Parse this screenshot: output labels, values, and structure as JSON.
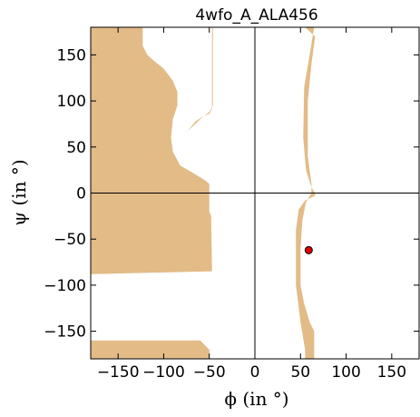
{
  "chart_data": {
    "type": "scatter",
    "title": "4wfo_A_ALA456",
    "xlabel": "ϕ (in °)",
    "ylabel": "ψ (in °)",
    "xlim": [
      -180,
      180
    ],
    "ylim": [
      -180,
      180
    ],
    "xticks": [
      -150,
      -100,
      -50,
      0,
      50,
      100,
      150
    ],
    "yticks": [
      -150,
      -100,
      -50,
      0,
      50,
      100,
      150
    ],
    "region_color": "#E2BB87",
    "point_color": "#DD0000",
    "points": [
      {
        "x": 59,
        "y": -62
      }
    ],
    "allowed_regions": [
      [
        [
          -180,
          180
        ],
        [
          -123,
          180
        ],
        [
          -123,
          160
        ],
        [
          -118,
          150
        ],
        [
          -110,
          143
        ],
        [
          -100,
          135
        ],
        [
          -90,
          122
        ],
        [
          -85,
          110
        ],
        [
          -85,
          95
        ],
        [
          -90,
          80
        ],
        [
          -92,
          60
        ],
        [
          -90,
          45
        ],
        [
          -82,
          30
        ],
        [
          -68,
          22
        ],
        [
          -55,
          14
        ],
        [
          -50,
          10
        ],
        [
          -50,
          -20
        ],
        [
          -48,
          -25
        ],
        [
          -47,
          -85
        ],
        [
          -180,
          -88
        ]
      ],
      [
        [
          -74,
          67
        ],
        [
          -65,
          78
        ],
        [
          -55,
          84
        ],
        [
          -50,
          86
        ],
        [
          -47,
          92
        ],
        [
          -47,
          180
        ],
        [
          -50,
          180
        ],
        [
          -45,
          180
        ],
        [
          -40,
          180
        ],
        [
          -46,
          180
        ],
        [
          -46,
          95
        ],
        [
          -50,
          88
        ],
        [
          -60,
          80
        ]
      ],
      [
        [
          -180,
          -160
        ],
        [
          -60,
          -160
        ],
        [
          -50,
          -170
        ],
        [
          -50,
          -180
        ],
        [
          -180,
          -180
        ]
      ],
      [
        [
          55,
          180
        ],
        [
          65,
          180
        ],
        [
          60,
          150
        ],
        [
          54,
          115
        ],
        [
          53,
          60
        ],
        [
          56,
          25
        ],
        [
          62,
          6
        ],
        [
          66,
          0
        ],
        [
          66,
          -3
        ],
        [
          55,
          -8
        ],
        [
          48,
          -18
        ],
        [
          45,
          -40
        ],
        [
          45,
          -100
        ],
        [
          50,
          -140
        ],
        [
          55,
          -170
        ],
        [
          55,
          -180
        ],
        [
          65,
          -180
        ],
        [
          65,
          -150
        ],
        [
          60,
          -140
        ],
        [
          54,
          -120
        ],
        [
          50,
          -100
        ],
        [
          50,
          -60
        ],
        [
          52,
          -30
        ],
        [
          56,
          -10
        ],
        [
          62,
          0
        ],
        [
          62,
          10
        ],
        [
          58,
          40
        ],
        [
          58,
          100
        ],
        [
          62,
          140
        ],
        [
          66,
          170
        ]
      ]
    ]
  }
}
